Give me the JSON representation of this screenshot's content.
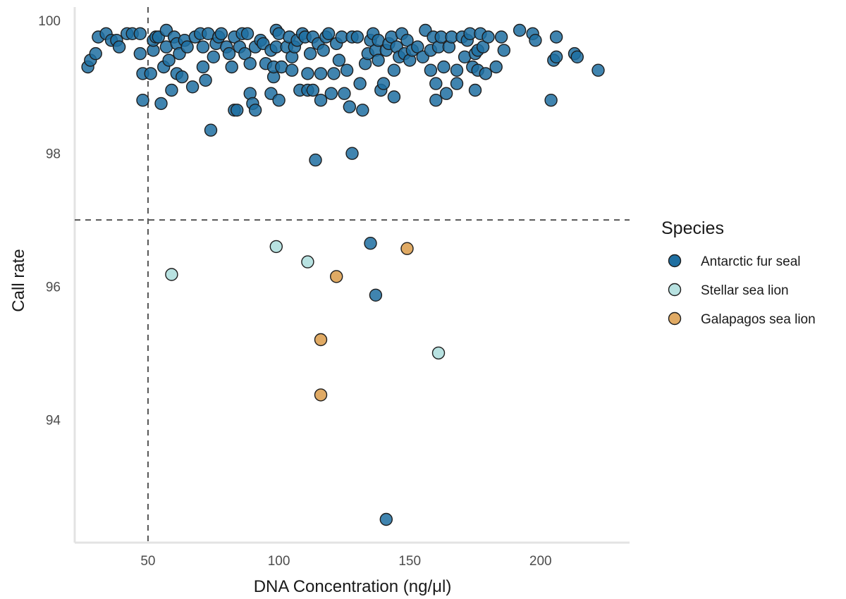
{
  "chart_data": {
    "type": "scatter",
    "title": "",
    "xlabel": "DNA Concentration (ng/μl)",
    "ylabel": "Call rate",
    "xlim": [
      22,
      234
    ],
    "ylim": [
      92.15,
      100.2
    ],
    "x_ticks": [
      50,
      100,
      150,
      200
    ],
    "y_ticks": [
      94,
      96,
      98,
      100
    ],
    "grid": false,
    "legend_title": "Species",
    "legend_position": "right",
    "reference_lines": {
      "x": 50,
      "y": 97
    },
    "series": [
      {
        "name": "Antarctic fur seal",
        "color": "#1f6fa1",
        "points": [
          [
            27,
            99.3
          ],
          [
            28,
            99.4
          ],
          [
            30,
            99.5
          ],
          [
            31,
            99.75
          ],
          [
            34,
            99.8
          ],
          [
            36,
            99.7
          ],
          [
            38,
            99.7
          ],
          [
            39,
            99.6
          ],
          [
            42,
            99.8
          ],
          [
            44,
            99.8
          ],
          [
            47,
            99.8
          ],
          [
            47,
            99.5
          ],
          [
            48,
            99.2
          ],
          [
            48,
            98.8
          ],
          [
            51,
            99.2
          ],
          [
            52,
            99.55
          ],
          [
            52,
            99.7
          ],
          [
            53,
            99.75
          ],
          [
            54,
            99.75
          ],
          [
            55,
            98.75
          ],
          [
            56,
            99.3
          ],
          [
            57,
            99.85
          ],
          [
            57,
            99.6
          ],
          [
            58,
            99.4
          ],
          [
            59,
            98.95
          ],
          [
            60,
            99.75
          ],
          [
            61,
            99.65
          ],
          [
            61,
            99.2
          ],
          [
            62,
            99.5
          ],
          [
            63,
            99.15
          ],
          [
            64,
            99.7
          ],
          [
            65,
            99.6
          ],
          [
            67,
            99.0
          ],
          [
            68,
            99.75
          ],
          [
            70,
            99.8
          ],
          [
            71,
            99.6
          ],
          [
            71,
            99.3
          ],
          [
            72,
            99.1
          ],
          [
            73,
            99.8
          ],
          [
            74,
            98.35
          ],
          [
            75,
            99.45
          ],
          [
            76,
            99.65
          ],
          [
            77,
            99.75
          ],
          [
            78,
            99.8
          ],
          [
            80,
            99.6
          ],
          [
            81,
            99.5
          ],
          [
            82,
            99.3
          ],
          [
            83,
            99.75
          ],
          [
            83,
            98.65
          ],
          [
            84,
            98.65
          ],
          [
            85,
            99.6
          ],
          [
            86,
            99.8
          ],
          [
            87,
            99.5
          ],
          [
            88,
            99.8
          ],
          [
            89,
            98.9
          ],
          [
            89,
            99.35
          ],
          [
            90,
            98.75
          ],
          [
            91,
            99.6
          ],
          [
            91,
            98.65
          ],
          [
            93,
            99.7
          ],
          [
            94,
            99.65
          ],
          [
            95,
            99.35
          ],
          [
            97,
            98.9
          ],
          [
            97,
            99.55
          ],
          [
            98,
            99.15
          ],
          [
            98,
            99.3
          ],
          [
            99,
            99.85
          ],
          [
            99,
            99.6
          ],
          [
            100,
            99.8
          ],
          [
            100,
            98.8
          ],
          [
            101,
            99.3
          ],
          [
            103,
            99.6
          ],
          [
            104,
            99.75
          ],
          [
            105,
            99.25
          ],
          [
            105,
            99.45
          ],
          [
            106,
            99.6
          ],
          [
            107,
            99.7
          ],
          [
            108,
            98.95
          ],
          [
            109,
            99.8
          ],
          [
            110,
            99.75
          ],
          [
            111,
            99.2
          ],
          [
            111,
            98.95
          ],
          [
            112,
            99.5
          ],
          [
            113,
            99.75
          ],
          [
            113,
            98.95
          ],
          [
            114,
            97.9
          ],
          [
            115,
            99.65
          ],
          [
            116,
            99.2
          ],
          [
            116,
            98.8
          ],
          [
            117,
            99.55
          ],
          [
            118,
            99.75
          ],
          [
            119,
            99.8
          ],
          [
            120,
            98.9
          ],
          [
            121,
            99.2
          ],
          [
            122,
            99.65
          ],
          [
            123,
            99.4
          ],
          [
            124,
            99.75
          ],
          [
            125,
            98.9
          ],
          [
            126,
            99.25
          ],
          [
            127,
            98.7
          ],
          [
            128,
            98.0
          ],
          [
            128,
            99.75
          ],
          [
            130,
            99.75
          ],
          [
            131,
            99.05
          ],
          [
            132,
            98.65
          ],
          [
            133,
            99.35
          ],
          [
            134,
            99.5
          ],
          [
            135,
            96.65
          ],
          [
            135,
            99.7
          ],
          [
            136,
            99.8
          ],
          [
            137,
            95.87
          ],
          [
            137,
            99.55
          ],
          [
            138,
            99.4
          ],
          [
            138,
            99.7
          ],
          [
            139,
            98.95
          ],
          [
            140,
            99.05
          ],
          [
            141,
            92.5
          ],
          [
            141,
            99.55
          ],
          [
            142,
            99.65
          ],
          [
            143,
            99.75
          ],
          [
            144,
            99.25
          ],
          [
            144,
            98.85
          ],
          [
            145,
            99.6
          ],
          [
            146,
            99.45
          ],
          [
            147,
            99.8
          ],
          [
            148,
            99.5
          ],
          [
            149,
            99.7
          ],
          [
            150,
            99.4
          ],
          [
            151,
            99.55
          ],
          [
            153,
            99.6
          ],
          [
            155,
            99.45
          ],
          [
            156,
            99.85
          ],
          [
            158,
            99.25
          ],
          [
            158,
            99.55
          ],
          [
            159,
            99.75
          ],
          [
            160,
            99.05
          ],
          [
            160,
            98.8
          ],
          [
            161,
            99.6
          ],
          [
            162,
            99.75
          ],
          [
            163,
            99.3
          ],
          [
            164,
            98.9
          ],
          [
            165,
            99.6
          ],
          [
            166,
            99.75
          ],
          [
            168,
            99.25
          ],
          [
            168,
            99.05
          ],
          [
            170,
            99.75
          ],
          [
            171,
            99.45
          ],
          [
            172,
            99.7
          ],
          [
            173,
            99.8
          ],
          [
            174,
            99.3
          ],
          [
            175,
            98.95
          ],
          [
            175,
            99.5
          ],
          [
            176,
            99.25
          ],
          [
            176,
            99.55
          ],
          [
            177,
            99.8
          ],
          [
            178,
            99.6
          ],
          [
            179,
            99.2
          ],
          [
            180,
            99.75
          ],
          [
            183,
            99.3
          ],
          [
            185,
            99.75
          ],
          [
            186,
            99.55
          ],
          [
            192,
            99.85
          ],
          [
            197,
            99.8
          ],
          [
            198,
            99.7
          ],
          [
            204,
            98.8
          ],
          [
            205,
            99.4
          ],
          [
            206,
            99.45
          ],
          [
            206,
            99.75
          ],
          [
            213,
            99.5
          ],
          [
            214,
            99.45
          ],
          [
            222,
            99.25
          ]
        ]
      },
      {
        "name": "Stellar sea lion",
        "color": "#b8e2e1",
        "points": [
          [
            59,
            96.18
          ],
          [
            99,
            96.6
          ],
          [
            111,
            96.37
          ],
          [
            161,
            95.0
          ]
        ]
      },
      {
        "name": "Galapagos sea lion",
        "color": "#e0aa64",
        "points": [
          [
            116,
            95.2
          ],
          [
            116,
            94.37
          ],
          [
            122,
            96.15
          ],
          [
            149,
            96.57
          ]
        ]
      }
    ]
  }
}
